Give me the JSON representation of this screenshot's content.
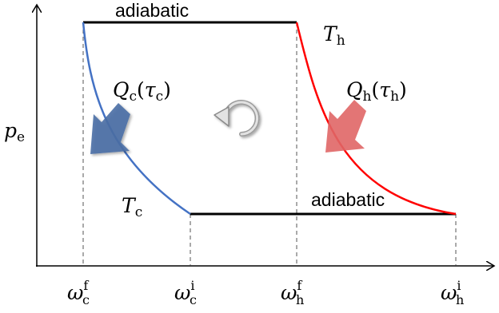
{
  "labels": {
    "adiabatic_top": "adiabatic",
    "adiabatic_bottom": "adiabatic",
    "y_axis": {
      "main": "p",
      "sub": "e"
    },
    "hot_temp": {
      "main": "T",
      "sub": "h"
    },
    "cold_temp": {
      "main": "T",
      "sub": "c"
    },
    "heat_cold": {
      "main": "Q",
      "sub": "c",
      "arg_main": "τ",
      "arg_sub": "c"
    },
    "heat_hot": {
      "main": "Q",
      "sub": "h",
      "arg_main": "τ",
      "arg_sub": "h"
    },
    "ticks": [
      {
        "main": "ω",
        "sub": "c",
        "sup": "f"
      },
      {
        "main": "ω",
        "sub": "c",
        "sup": "i"
      },
      {
        "main": "ω",
        "sub": "h",
        "sup": "f"
      },
      {
        "main": "ω",
        "sub": "h",
        "sup": "i"
      }
    ]
  },
  "colors": {
    "axis": "#000000",
    "adiabat": "#000000",
    "cold_curve": "#4472c4",
    "hot_curve": "#ff0000",
    "cold_arrow": "#4a6fa5",
    "hot_arrow": "#e06666",
    "cycle_arrow": "#a6a6a6",
    "guide_lines": "#555555"
  },
  "icons": {
    "cycle": "counterclockwise-cycle-arrow-icon",
    "cold_heat_flow": "heat-flow-arrow-icon",
    "hot_heat_flow": "heat-flow-arrow-icon"
  }
}
